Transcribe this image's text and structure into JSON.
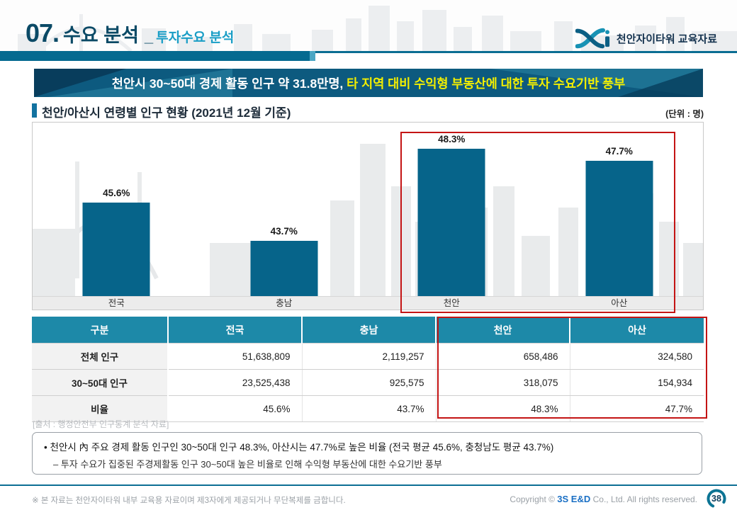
{
  "header": {
    "slide_number": "07.",
    "title": "수요 분석",
    "separator": "_",
    "subtitle": "투자수요 분석",
    "logo_text": "천안자이타워 교육자료"
  },
  "banner": {
    "text_white": "천안시 30~50대 경제 활동 인구 약 31.8만명, ",
    "text_yellow": "타 지역 대비 수익형 부동산에 대한 투자 수요기반 풍부"
  },
  "section": {
    "title": "천안/아산시 연령별 인구 현황 (2021년 12월 기준)",
    "unit_label": "(단위 : 명)"
  },
  "chart_data": {
    "type": "bar",
    "title": "천안/아산시 연령별 인구 현황 (2021년 12월 기준)",
    "categories": [
      "전국",
      "충남",
      "천안",
      "아산"
    ],
    "values": [
      45.6,
      43.7,
      48.3,
      47.7
    ],
    "value_labels": [
      "45.6%",
      "43.7%",
      "48.3%",
      "47.7%"
    ],
    "unit": "%",
    "ylim": [
      40.9,
      49.6
    ],
    "grid": false,
    "legend": "none",
    "bar_color": "#06648a",
    "highlighted_categories": [
      "천안",
      "아산"
    ],
    "highlight_box_color": "#c41414"
  },
  "table": {
    "headers": [
      "구분",
      "전국",
      "충남",
      "천안",
      "아산"
    ],
    "rows": [
      {
        "label": "전체 인구",
        "values": [
          "51,638,809",
          "2,119,257",
          "658,486",
          "324,580"
        ]
      },
      {
        "label": "30~50대 인구",
        "values": [
          "23,525,438",
          "925,575",
          "318,075",
          "154,934"
        ]
      },
      {
        "label": "비율",
        "values": [
          "45.6%",
          "43.7%",
          "48.3%",
          "47.7%"
        ]
      }
    ],
    "highlighted_columns": [
      "천안",
      "아산"
    ]
  },
  "source": "[출처 : 행정안전부 인구통계 분석 자료]",
  "notes": {
    "line1": "• 천안시 內 주요 경제 활동 인구인 30~50대 인구 48.3%, 아산시는 47.7%로 높은 비율 (전국 평균 45.6%, 충청남도 평균 43.7%)",
    "line2": "– 투자 수요가 집중된 주경제활동 인구 30~50대 높은 비율로 인해 수익형 부동산에 대한 수요기반 풍부"
  },
  "footer": {
    "disclaimer": "※ 본 자료는 천안자이타워 내부 교육용 자료이며 제3자에게 제공되거나 무단복제를 금합니다.",
    "copyright_prefix": "Copyright © ",
    "company": "3S E&D",
    "copyright_suffix": " Co., Ltd. All rights reserved.",
    "page_number": "38"
  },
  "colors": {
    "title_navy": "#0b4a66",
    "subtitle_cyan": "#1a9ec6",
    "header_rule_teal": "#056a90",
    "banner_bg": "#0d5a7f",
    "banner_yellow": "#f3ef00",
    "bar_teal": "#06648a",
    "table_header_teal": "#1d89a8",
    "highlight_red": "#c41414"
  }
}
